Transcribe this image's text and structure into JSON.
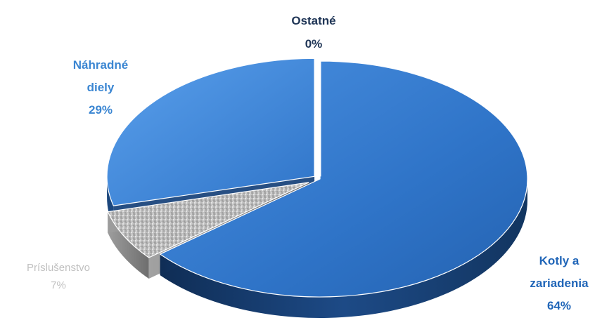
{
  "chart_data": {
    "type": "pie",
    "style": "3d-exploded",
    "categories": [
      "Kotly a zariadenia",
      "Príslušenstvo",
      "Náhradné diely",
      "Ostatné"
    ],
    "values": [
      64,
      7,
      29,
      0
    ],
    "value_labels": [
      "64%",
      "7%",
      "29%",
      "0%"
    ],
    "colors": [
      "#2f74c8",
      "#b8b8b8",
      "#3c82d6",
      "#1f4f8a"
    ],
    "label_colors": [
      "#2166b8",
      "#c0c0c0",
      "#3b86d2",
      "#1f3556"
    ],
    "legend": "none"
  }
}
